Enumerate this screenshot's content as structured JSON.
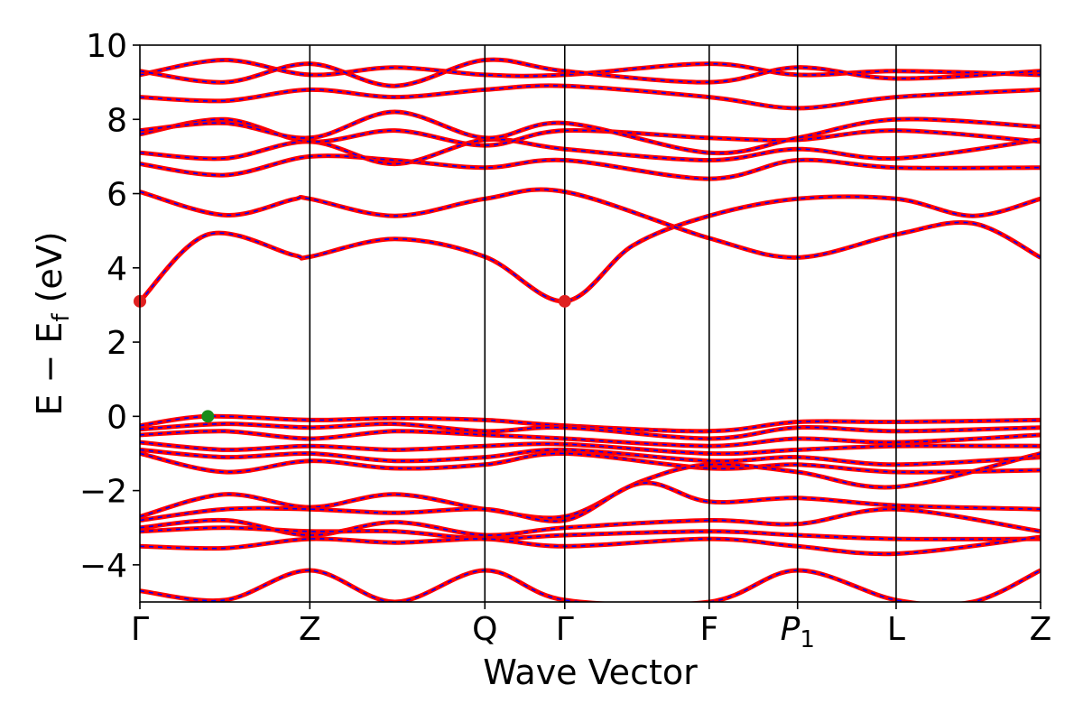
{
  "chart_data": {
    "type": "line",
    "title": "",
    "xlabel": "Wave Vector",
    "ylabel": "E − E",
    "ylabel_sub": "f",
    "ylabel_unit": " (eV)",
    "ylim": [
      -5,
      10
    ],
    "yticks": [
      {
        "value": 10,
        "label": "10"
      },
      {
        "value": 8,
        "label": "8"
      },
      {
        "value": 6,
        "label": "6"
      },
      {
        "value": 4,
        "label": "4"
      },
      {
        "value": 2,
        "label": "2"
      },
      {
        "value": 0,
        "label": "0"
      },
      {
        "value": -2,
        "label": "−2"
      },
      {
        "value": -4,
        "label": "−4"
      }
    ],
    "kpoints": [
      {
        "label": "Γ",
        "sub": "",
        "pos": 0.0
      },
      {
        "label": "Z",
        "sub": "",
        "pos": 1.0
      },
      {
        "label": "Q",
        "sub": "",
        "pos": 2.03
      },
      {
        "label": "Γ",
        "sub": "",
        "pos": 2.5
      },
      {
        "label": "F",
        "sub": "",
        "pos": 3.35
      },
      {
        "label": "P",
        "sub": "1",
        "pos": 3.87
      },
      {
        "label": "L",
        "sub": "",
        "pos": 4.45
      },
      {
        "label": "Z",
        "sub": "",
        "pos": 5.3
      }
    ],
    "band_style": {
      "outer_color": "#ff0000",
      "inner_color": "#0000ff",
      "inner_dash": "dashed"
    },
    "markers": [
      {
        "name": "CBM",
        "color": "#e02020",
        "x": 0.0,
        "y": 3.1
      },
      {
        "name": "CBM",
        "color": "#e02020",
        "x": 2.5,
        "y": 3.1
      },
      {
        "name": "VBM",
        "color": "#1a8c1a",
        "x": 0.4,
        "y": 0.0
      }
    ],
    "series": [
      {
        "x": [
          0,
          0.4,
          0.9,
          1.0,
          1.5,
          2.03,
          2.5,
          2.9,
          3.35,
          3.87,
          4.45,
          4.9,
          5.3
        ],
        "y": [
          3.1,
          4.9,
          4.35,
          4.3,
          4.78,
          4.3,
          3.1,
          4.6,
          5.4,
          5.86,
          5.86,
          5.4,
          5.86
        ]
      },
      {
        "x": [
          0,
          0.5,
          0.9,
          1.0,
          1.5,
          2.03,
          2.5,
          3.35,
          3.87,
          4.45,
          4.9,
          5.3
        ],
        "y": [
          6.05,
          5.42,
          5.84,
          5.86,
          5.4,
          5.86,
          6.05,
          4.8,
          4.28,
          4.9,
          5.2,
          4.28
        ]
      },
      {
        "x": [
          0,
          0.5,
          1.0,
          1.5,
          2.03,
          2.5,
          3.35,
          3.87,
          4.45,
          5.3
        ],
        "y": [
          6.8,
          6.5,
          7.0,
          6.9,
          6.7,
          6.9,
          6.4,
          6.9,
          6.7,
          6.7
        ]
      },
      {
        "x": [
          0,
          0.5,
          1.0,
          1.5,
          2.03,
          2.5,
          3.35,
          3.87,
          4.45,
          5.3
        ],
        "y": [
          7.1,
          6.95,
          7.4,
          6.8,
          7.45,
          7.2,
          6.9,
          7.2,
          6.95,
          7.45
        ]
      },
      {
        "x": [
          0,
          0.5,
          1.0,
          1.5,
          2.03,
          2.5,
          3.35,
          3.87,
          4.45,
          5.3
        ],
        "y": [
          7.6,
          8.0,
          7.4,
          7.7,
          7.3,
          7.7,
          7.5,
          7.45,
          7.7,
          7.4
        ]
      },
      {
        "x": [
          0,
          0.5,
          1.0,
          1.5,
          2.03,
          2.5,
          3.35,
          3.87,
          4.45,
          5.3
        ],
        "y": [
          7.7,
          7.9,
          7.5,
          8.2,
          7.5,
          7.9,
          7.1,
          7.5,
          8.0,
          7.8
        ]
      },
      {
        "x": [
          0,
          0.5,
          1.0,
          1.5,
          2.03,
          2.5,
          3.35,
          3.87,
          4.45,
          5.3
        ],
        "y": [
          8.6,
          8.5,
          8.8,
          8.6,
          8.8,
          8.9,
          8.6,
          8.3,
          8.6,
          8.8
        ]
      },
      {
        "x": [
          0,
          0.5,
          1.0,
          1.5,
          2.03,
          2.5,
          3.35,
          3.87,
          4.45,
          5.3
        ],
        "y": [
          9.2,
          9.6,
          9.2,
          9.4,
          9.2,
          9.2,
          9.5,
          9.2,
          9.3,
          9.2
        ]
      },
      {
        "x": [
          0,
          0.5,
          1.0,
          1.5,
          2.03,
          2.5,
          3.35,
          3.87,
          4.45,
          5.3
        ],
        "y": [
          9.3,
          9.0,
          9.5,
          8.9,
          9.6,
          9.3,
          9.0,
          9.4,
          9.1,
          9.3
        ]
      },
      {
        "x": [
          0,
          0.4,
          1.0,
          1.5,
          2.03,
          2.5,
          3.35,
          3.87,
          4.45,
          5.3
        ],
        "y": [
          -0.25,
          0.0,
          -0.1,
          -0.05,
          -0.1,
          -0.25,
          -0.4,
          -0.15,
          -0.15,
          -0.1
        ]
      },
      {
        "x": [
          0,
          0.5,
          1.0,
          1.5,
          2.03,
          2.5,
          3.35,
          3.87,
          4.45,
          5.3
        ],
        "y": [
          -0.35,
          -0.2,
          -0.3,
          -0.2,
          -0.4,
          -0.3,
          -0.6,
          -0.3,
          -0.4,
          -0.3
        ]
      },
      {
        "x": [
          0,
          0.5,
          1.0,
          1.5,
          2.03,
          2.5,
          3.35,
          3.87,
          4.45,
          5.3
        ],
        "y": [
          -0.5,
          -0.4,
          -0.6,
          -0.4,
          -0.5,
          -0.6,
          -0.8,
          -0.6,
          -0.7,
          -0.5
        ]
      },
      {
        "x": [
          0,
          0.5,
          1.0,
          1.5,
          2.03,
          2.5,
          3.35,
          3.87,
          4.45,
          5.3
        ],
        "y": [
          -0.7,
          -0.9,
          -0.8,
          -0.9,
          -0.8,
          -0.75,
          -1.0,
          -0.9,
          -0.8,
          -0.8
        ]
      },
      {
        "x": [
          0,
          0.5,
          1.0,
          1.5,
          2.03,
          2.5,
          3.35,
          3.87,
          4.45,
          5.3
        ],
        "y": [
          -0.9,
          -1.1,
          -1.0,
          -1.2,
          -1.1,
          -0.9,
          -1.2,
          -1.1,
          -1.3,
          -1.1
        ]
      },
      {
        "x": [
          0,
          0.5,
          1.0,
          1.5,
          2.03,
          2.5,
          3.35,
          3.87,
          4.45,
          5.3
        ],
        "y": [
          -1.0,
          -1.5,
          -1.2,
          -1.4,
          -1.3,
          -1.0,
          -1.4,
          -1.3,
          -1.5,
          -1.45
        ]
      },
      {
        "x": [
          0,
          0.5,
          1.0,
          1.5,
          2.03,
          2.5,
          2.95,
          3.35,
          3.87,
          4.45,
          5.3
        ],
        "y": [
          -2.7,
          -2.1,
          -2.45,
          -2.1,
          -2.5,
          -2.7,
          -1.75,
          -1.3,
          -1.5,
          -1.9,
          -1.0
        ]
      },
      {
        "x": [
          0,
          0.5,
          1.0,
          1.5,
          2.03,
          2.5,
          2.95,
          3.35,
          3.87,
          4.45,
          5.3
        ],
        "y": [
          -2.8,
          -2.5,
          -2.5,
          -2.6,
          -2.5,
          -2.8,
          -1.8,
          -2.3,
          -2.2,
          -2.4,
          -2.5
        ]
      },
      {
        "x": [
          0,
          0.5,
          1.0,
          1.5,
          2.03,
          2.5,
          3.35,
          3.87,
          4.45,
          5.3
        ],
        "y": [
          -3.0,
          -2.8,
          -3.2,
          -2.85,
          -3.2,
          -3.0,
          -2.8,
          -2.9,
          -2.5,
          -3.1
        ]
      },
      {
        "x": [
          0,
          0.5,
          1.0,
          1.5,
          2.03,
          2.5,
          3.35,
          3.87,
          4.45,
          5.3
        ],
        "y": [
          -3.1,
          -3.0,
          -3.1,
          -3.1,
          -3.3,
          -3.2,
          -3.1,
          -3.2,
          -3.3,
          -3.3
        ]
      },
      {
        "x": [
          0,
          0.5,
          1.0,
          1.5,
          2.03,
          2.5,
          3.35,
          3.87,
          4.45,
          5.3
        ],
        "y": [
          -3.5,
          -3.55,
          -3.3,
          -3.4,
          -3.3,
          -3.5,
          -3.3,
          -3.5,
          -3.7,
          -3.25
        ]
      },
      {
        "x": [
          0,
          0.5,
          1.0,
          1.5,
          2.03,
          2.5,
          3.35,
          3.87,
          4.45,
          4.9,
          5.3
        ],
        "y": [
          -4.7,
          -4.95,
          -4.15,
          -5.0,
          -4.15,
          -4.95,
          -5.0,
          -4.15,
          -4.95,
          -5.0,
          -4.15
        ]
      }
    ]
  }
}
